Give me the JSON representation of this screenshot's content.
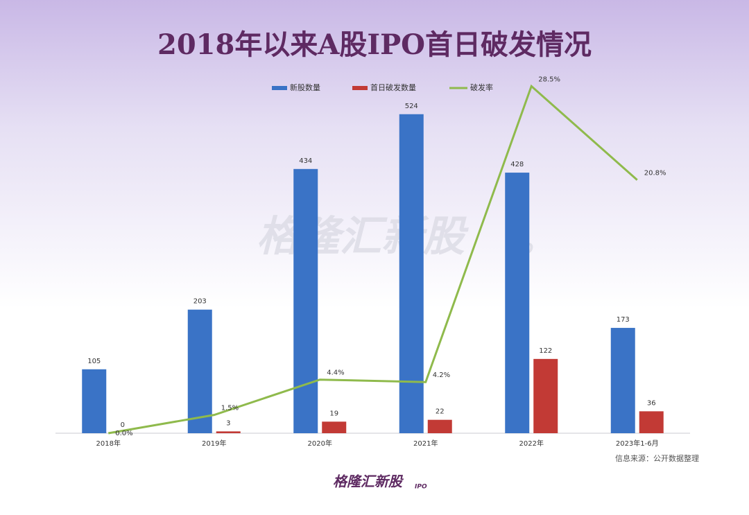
{
  "chart_data": {
    "type": "bar_line",
    "title": "2018年以来A股IPO首日破发情况",
    "categories": [
      "2018年",
      "2019年",
      "2020年",
      "2021年",
      "2022年",
      "2023年1-6月"
    ],
    "series": [
      {
        "name": "新股数量",
        "type": "bar",
        "color": "#3a73c6",
        "values": [
          105,
          203,
          434,
          524,
          428,
          173
        ]
      },
      {
        "name": "首日破发数量",
        "type": "bar",
        "color": "#c23a35",
        "values": [
          0,
          3,
          19,
          22,
          122,
          36
        ]
      },
      {
        "name": "破发率",
        "type": "line",
        "axis": "y2",
        "color": "#8fba4c",
        "values": [
          0,
          1.5,
          4.4,
          4.2,
          28.5,
          20.8
        ],
        "value_labels": [
          "0.0%",
          "1.5%",
          "4.4%",
          "4.2%",
          "28.5%",
          "20.8%"
        ]
      }
    ],
    "ylim": [
      0,
      600
    ],
    "y2lim": [
      0,
      30
    ],
    "source": "信息来源：公开数据整理",
    "watermark": "格隆汇新股",
    "watermark_sub": "IPO"
  }
}
